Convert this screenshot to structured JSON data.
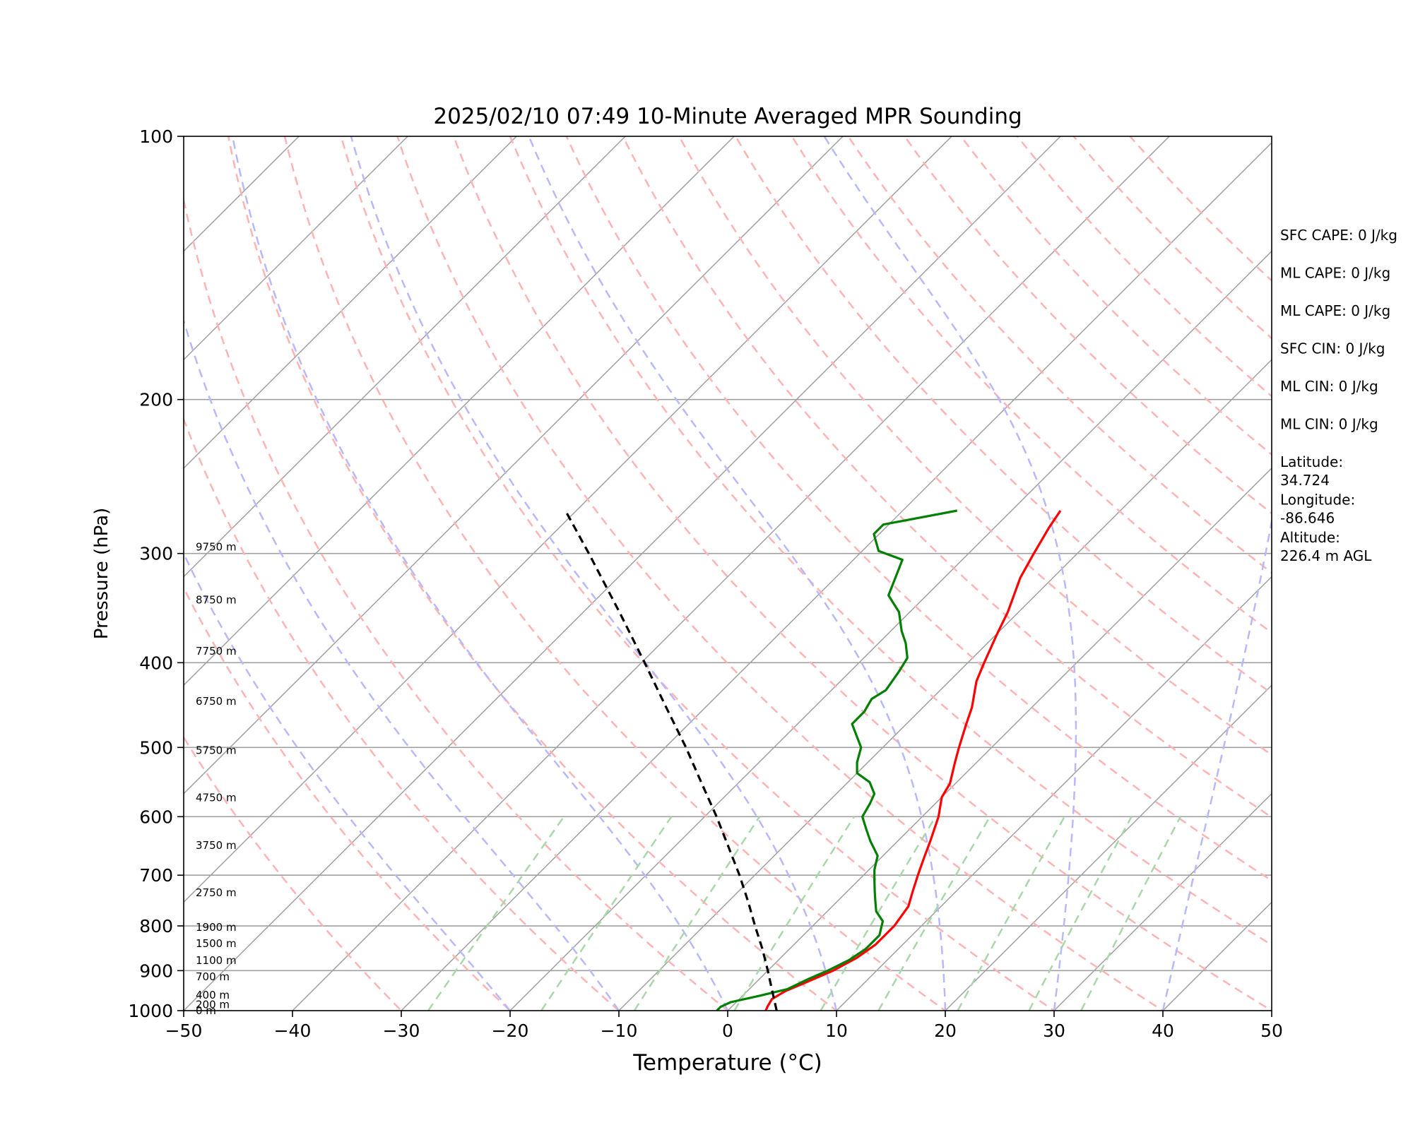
{
  "chart_data": {
    "type": "line",
    "subtype": "skew-t log-p",
    "title": "2025/02/10 07:49 10-Minute Averaged MPR Sounding",
    "xlabel": "Temperature (°C)",
    "ylabel": "Pressure (hPa)",
    "xlim": [
      -50,
      50
    ],
    "ylim": [
      1000,
      100
    ],
    "y_scale": "log",
    "grid": true,
    "x_ticks": [
      -50,
      -40,
      -30,
      -20,
      -10,
      0,
      10,
      20,
      30,
      40,
      50
    ],
    "x_tick_labels": [
      "−50",
      "−40",
      "−30",
      "−20",
      "−10",
      "0",
      "10",
      "20",
      "30",
      "40",
      "50"
    ],
    "y_ticks": [
      1000,
      900,
      800,
      700,
      600,
      500,
      400,
      300,
      200,
      100
    ],
    "y_tick_labels": [
      "1000",
      "900",
      "800",
      "700",
      "600",
      "500",
      "400",
      "300",
      "200",
      "100"
    ],
    "height_labels": [
      {
        "p": 1000,
        "label": "0 m"
      },
      {
        "p": 984,
        "label": "200 m"
      },
      {
        "p": 960,
        "label": "400 m"
      },
      {
        "p": 915,
        "label": "700 m"
      },
      {
        "p": 876,
        "label": "1100 m"
      },
      {
        "p": 838,
        "label": "1500 m"
      },
      {
        "p": 803,
        "label": "1900 m"
      },
      {
        "p": 733,
        "label": "2750 m"
      },
      {
        "p": 647,
        "label": "3750 m"
      },
      {
        "p": 571,
        "label": "4750 m"
      },
      {
        "p": 504,
        "label": "5750 m"
      },
      {
        "p": 443,
        "label": "6750 m"
      },
      {
        "p": 388,
        "label": "7750 m"
      },
      {
        "p": 339,
        "label": "8750 m"
      },
      {
        "p": 295,
        "label": "9750 m"
      }
    ],
    "series": [
      {
        "color": "#ff0000",
        "points": [
          [
            1000,
            3.5
          ],
          [
            990,
            3.3
          ],
          [
            970,
            3.0
          ],
          [
            950,
            3.5
          ],
          [
            930,
            4.5
          ],
          [
            900,
            6.0
          ],
          [
            870,
            7.0
          ],
          [
            840,
            7.5
          ],
          [
            800,
            7.5
          ],
          [
            760,
            7.0
          ],
          [
            730,
            6.0
          ],
          [
            700,
            5.0
          ],
          [
            670,
            4.0
          ],
          [
            640,
            3.0
          ],
          [
            600,
            1.5
          ],
          [
            570,
            0.0
          ],
          [
            550,
            -0.5
          ],
          [
            520,
            -2.0
          ],
          [
            500,
            -3.0
          ],
          [
            470,
            -4.5
          ],
          [
            450,
            -5.5
          ],
          [
            420,
            -7.5
          ],
          [
            400,
            -8.5
          ],
          [
            370,
            -10.0
          ],
          [
            350,
            -11.0
          ],
          [
            320,
            -13.0
          ],
          [
            300,
            -14.0
          ],
          [
            280,
            -15.0
          ],
          [
            268,
            -15.5
          ]
        ]
      },
      {
        "color": "#008000",
        "points": [
          [
            1000,
            -1.0
          ],
          [
            990,
            -1.0
          ],
          [
            978,
            -0.5
          ],
          [
            962,
            1.5
          ],
          [
            945,
            3.5
          ],
          [
            920,
            4.5
          ],
          [
            900,
            5.5
          ],
          [
            875,
            6.5
          ],
          [
            850,
            7.0
          ],
          [
            820,
            7.0
          ],
          [
            790,
            6.0
          ],
          [
            770,
            4.5
          ],
          [
            750,
            3.5
          ],
          [
            730,
            2.5
          ],
          [
            710,
            1.5
          ],
          [
            690,
            0.5
          ],
          [
            665,
            -0.5
          ],
          [
            640,
            -2.5
          ],
          [
            620,
            -4.0
          ],
          [
            600,
            -5.5
          ],
          [
            580,
            -6.0
          ],
          [
            565,
            -6.5
          ],
          [
            548,
            -8.0
          ],
          [
            535,
            -10.0
          ],
          [
            520,
            -11.0
          ],
          [
            500,
            -12.0
          ],
          [
            470,
            -15.0
          ],
          [
            455,
            -15.0
          ],
          [
            440,
            -15.5
          ],
          [
            430,
            -15.0
          ],
          [
            410,
            -15.5
          ],
          [
            395,
            -16.0
          ],
          [
            380,
            -17.5
          ],
          [
            368,
            -19.0
          ],
          [
            350,
            -21.0
          ],
          [
            335,
            -23.5
          ],
          [
            305,
            -25.5
          ],
          [
            298,
            -28.5
          ],
          [
            285,
            -30.5
          ],
          [
            278,
            -30.5
          ],
          [
            268,
            -25.0
          ]
        ]
      },
      {
        "color": "#000000",
        "dashed": true,
        "points": [
          [
            1000,
            4.5
          ],
          [
            950,
            2.3
          ],
          [
            900,
            0.0
          ],
          [
            850,
            -2.5
          ],
          [
            800,
            -5.3
          ],
          [
            750,
            -8.2
          ],
          [
            700,
            -11.4
          ],
          [
            650,
            -15.0
          ],
          [
            600,
            -18.9
          ],
          [
            550,
            -23.3
          ],
          [
            500,
            -28.1
          ],
          [
            450,
            -33.6
          ],
          [
            400,
            -39.7
          ],
          [
            350,
            -46.7
          ],
          [
            300,
            -54.9
          ],
          [
            268,
            -61.0
          ]
        ]
      }
    ],
    "reference_lines": {
      "isotherms": [
        -120,
        -110,
        -100,
        -90,
        -80,
        -70,
        -60,
        -50,
        -40,
        -30,
        -20,
        -10,
        0,
        10,
        20,
        30,
        40,
        50
      ],
      "dry_adiabats_theta_c": [
        -30,
        -20,
        -10,
        0,
        10,
        20,
        30,
        40,
        50,
        60,
        70,
        80,
        90,
        100,
        110,
        120,
        130,
        140,
        150,
        160,
        170
      ],
      "moist_adiabats_t1000_c": [
        -20,
        -10,
        0,
        10,
        20,
        30,
        40,
        50,
        60
      ],
      "mixing_ratio_lines_gkg": [
        0.4,
        1,
        2,
        4,
        7,
        10,
        16,
        24,
        32
      ]
    },
    "colors": {
      "isotherm": "#a0a0a0",
      "dry_adiabat": "#ffb3b3",
      "moist_adiabat": "#b8b8ff",
      "mixing_ratio": "#a8d8a8"
    }
  },
  "side_panel": [
    "SFC CAPE: 0 J/kg",
    "ML CAPE: 0 J/kg",
    "ML CAPE: 0 J/kg",
    "SFC CIN: 0 J/kg",
    "ML CIN: 0 J/kg",
    "ML CIN: 0 J/kg",
    "Latitude:\n34.724",
    "Longitude:\n-86.646",
    "Altitude:\n226.4 m AGL"
  ]
}
